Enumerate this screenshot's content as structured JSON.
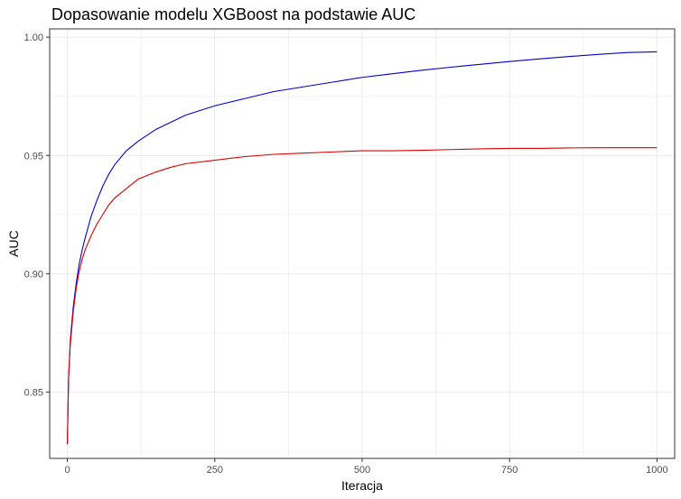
{
  "chart_data": {
    "type": "line",
    "title": "Dopasowanie modelu XGBoost na podstawie AUC",
    "xlabel": "Iteracja",
    "ylabel": "AUC",
    "xlim": [
      -30,
      1030
    ],
    "ylim": [
      0.822,
      1.0035
    ],
    "x_ticks": [
      0,
      250,
      500,
      750,
      1000
    ],
    "x_tick_labels": [
      "0",
      "250",
      "500",
      "750",
      "1000"
    ],
    "y_ticks": [
      0.85,
      0.9,
      0.95,
      1.0
    ],
    "y_tick_labels": [
      "0.85",
      "0.90",
      "0.95",
      "1.00"
    ],
    "grid": true,
    "legend": "none",
    "colors": {
      "train": "#0000cd",
      "test": "#dd0000",
      "grid": "#ebebeb",
      "border": "#333333"
    },
    "series": [
      {
        "color": "#0000cd",
        "x": [
          0,
          2,
          5,
          10,
          15,
          20,
          25,
          30,
          40,
          50,
          60,
          70,
          80,
          100,
          120,
          150,
          175,
          200,
          250,
          300,
          350,
          400,
          450,
          500,
          550,
          600,
          650,
          700,
          750,
          800,
          850,
          900,
          950,
          1000
        ],
        "y": [
          0.828,
          0.855,
          0.872,
          0.886,
          0.896,
          0.904,
          0.91,
          0.915,
          0.924,
          0.931,
          0.937,
          0.942,
          0.946,
          0.952,
          0.956,
          0.961,
          0.964,
          0.967,
          0.971,
          0.974,
          0.977,
          0.979,
          0.981,
          0.983,
          0.9845,
          0.986,
          0.9873,
          0.9885,
          0.9897,
          0.9908,
          0.9918,
          0.9927,
          0.9935,
          0.9938
        ]
      },
      {
        "color": "#dd0000",
        "x": [
          0,
          2,
          5,
          10,
          15,
          20,
          25,
          30,
          40,
          50,
          60,
          70,
          80,
          100,
          120,
          150,
          175,
          200,
          250,
          300,
          350,
          400,
          450,
          500,
          550,
          600,
          650,
          700,
          750,
          800,
          850,
          900,
          950,
          1000
        ],
        "y": [
          0.828,
          0.856,
          0.87,
          0.884,
          0.894,
          0.901,
          0.906,
          0.91,
          0.916,
          0.921,
          0.925,
          0.929,
          0.932,
          0.936,
          0.94,
          0.943,
          0.945,
          0.9465,
          0.948,
          0.9495,
          0.9505,
          0.951,
          0.9515,
          0.952,
          0.952,
          0.9522,
          0.9525,
          0.9528,
          0.953,
          0.953,
          0.9532,
          0.9533,
          0.9533,
          0.9533
        ]
      }
    ]
  }
}
